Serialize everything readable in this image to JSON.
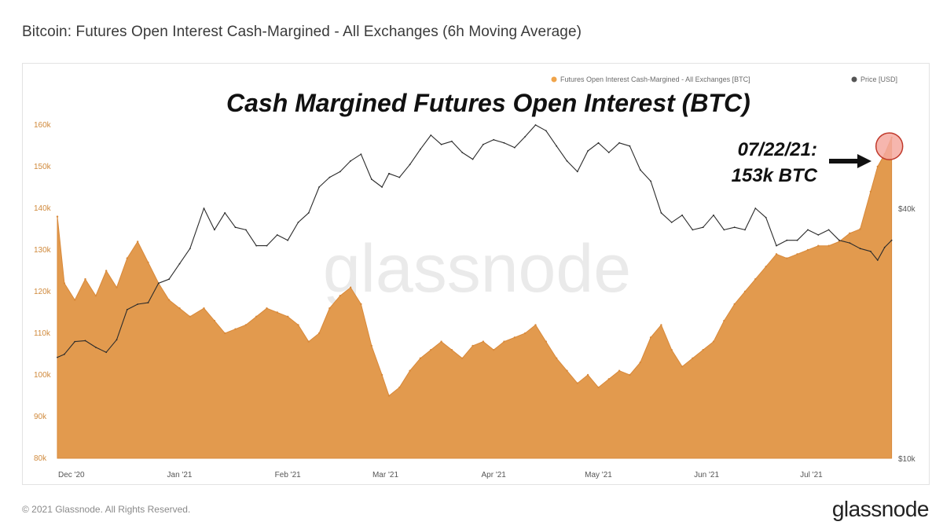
{
  "header": {
    "title": "Bitcoin: Futures Open Interest Cash-Margined - All Exchanges (6h Moving Average)"
  },
  "footer": {
    "copyright": "© 2021 Glassnode. All Rights Reserved.",
    "logo_text": "glassnode"
  },
  "watermark": "glassnode",
  "colors": {
    "oi_fill": "#e29a4e",
    "oi_tick": "#d08a3c",
    "price_line": "#2b2b2b",
    "marker": "#f4a9a0",
    "marker_stroke": "#c0392b"
  },
  "chart_data": {
    "type": "area",
    "title": "Cash Margined Futures Open Interest (BTC)",
    "legend": {
      "placement": "top-right",
      "items": [
        {
          "name": "Futures Open Interest Cash-Margined - All Exchanges [BTC]",
          "color": "#f0a44a"
        },
        {
          "name": "Price [USD]",
          "color": "#555555"
        }
      ]
    },
    "annotation": {
      "line1": "07/22/21:",
      "line2": "153k BTC",
      "date": "2021-07-22",
      "value": 153000
    },
    "x_range": [
      "2020-11-27",
      "2021-07-25"
    ],
    "x_ticks": [
      {
        "label": "Dec '20",
        "date": "2020-12-01"
      },
      {
        "label": "Jan '21",
        "date": "2021-01-01"
      },
      {
        "label": "Feb '21",
        "date": "2021-02-01"
      },
      {
        "label": "Mar '21",
        "date": "2021-03-01"
      },
      {
        "label": "Apr '21",
        "date": "2021-04-01"
      },
      {
        "label": "May '21",
        "date": "2021-05-01"
      },
      {
        "label": "Jun '21",
        "date": "2021-06-01"
      },
      {
        "label": "Jul '21",
        "date": "2021-07-01"
      }
    ],
    "y_left": {
      "range": [
        80000,
        160000
      ],
      "ticks": [
        {
          "label": "80k",
          "value": 80000
        },
        {
          "label": "90k",
          "value": 90000
        },
        {
          "label": "100k",
          "value": 100000
        },
        {
          "label": "110k",
          "value": 110000
        },
        {
          "label": "120k",
          "value": 120000
        },
        {
          "label": "130k",
          "value": 130000
        },
        {
          "label": "140k",
          "value": 140000
        },
        {
          "label": "150k",
          "value": 150000
        },
        {
          "label": "160k",
          "value": 160000
        }
      ]
    },
    "y_right": {
      "scale": "log",
      "ticks": [
        {
          "label": "$10k",
          "value": 10000
        },
        {
          "label": "$40k",
          "value": 40000
        }
      ]
    },
    "series": [
      {
        "name": "Futures Open Interest Cash-Margined - All Exchanges [BTC]",
        "points": [
          [
            "2020-11-27",
            138000
          ],
          [
            "2020-11-29",
            122000
          ],
          [
            "2020-12-02",
            118000
          ],
          [
            "2020-12-05",
            123000
          ],
          [
            "2020-12-08",
            119000
          ],
          [
            "2020-12-11",
            125000
          ],
          [
            "2020-12-14",
            121000
          ],
          [
            "2020-12-17",
            128000
          ],
          [
            "2020-12-20",
            132000
          ],
          [
            "2020-12-23",
            127000
          ],
          [
            "2020-12-26",
            122000
          ],
          [
            "2020-12-29",
            118000
          ],
          [
            "2021-01-01",
            116000
          ],
          [
            "2021-01-04",
            114000
          ],
          [
            "2021-01-08",
            116000
          ],
          [
            "2021-01-11",
            113000
          ],
          [
            "2021-01-14",
            110000
          ],
          [
            "2021-01-17",
            111000
          ],
          [
            "2021-01-20",
            112000
          ],
          [
            "2021-01-23",
            114000
          ],
          [
            "2021-01-26",
            116000
          ],
          [
            "2021-01-29",
            115000
          ],
          [
            "2021-02-01",
            114000
          ],
          [
            "2021-02-04",
            112000
          ],
          [
            "2021-02-07",
            108000
          ],
          [
            "2021-02-10",
            110000
          ],
          [
            "2021-02-13",
            116000
          ],
          [
            "2021-02-16",
            119000
          ],
          [
            "2021-02-19",
            121000
          ],
          [
            "2021-02-22",
            117000
          ],
          [
            "2021-02-25",
            107000
          ],
          [
            "2021-02-28",
            100000
          ],
          [
            "2021-03-02",
            95000
          ],
          [
            "2021-03-05",
            97000
          ],
          [
            "2021-03-08",
            101000
          ],
          [
            "2021-03-11",
            104000
          ],
          [
            "2021-03-14",
            106000
          ],
          [
            "2021-03-17",
            108000
          ],
          [
            "2021-03-20",
            106000
          ],
          [
            "2021-03-23",
            104000
          ],
          [
            "2021-03-26",
            107000
          ],
          [
            "2021-03-29",
            108000
          ],
          [
            "2021-04-01",
            106000
          ],
          [
            "2021-04-04",
            108000
          ],
          [
            "2021-04-07",
            109000
          ],
          [
            "2021-04-10",
            110000
          ],
          [
            "2021-04-13",
            112000
          ],
          [
            "2021-04-16",
            108000
          ],
          [
            "2021-04-19",
            104000
          ],
          [
            "2021-04-22",
            101000
          ],
          [
            "2021-04-25",
            98000
          ],
          [
            "2021-04-28",
            100000
          ],
          [
            "2021-05-01",
            97000
          ],
          [
            "2021-05-04",
            99000
          ],
          [
            "2021-05-07",
            101000
          ],
          [
            "2021-05-10",
            100000
          ],
          [
            "2021-05-13",
            103000
          ],
          [
            "2021-05-16",
            109000
          ],
          [
            "2021-05-19",
            112000
          ],
          [
            "2021-05-22",
            106000
          ],
          [
            "2021-05-25",
            102000
          ],
          [
            "2021-05-28",
            104000
          ],
          [
            "2021-05-31",
            106000
          ],
          [
            "2021-06-03",
            108000
          ],
          [
            "2021-06-06",
            113000
          ],
          [
            "2021-06-09",
            117000
          ],
          [
            "2021-06-12",
            120000
          ],
          [
            "2021-06-15",
            123000
          ],
          [
            "2021-06-18",
            126000
          ],
          [
            "2021-06-21",
            129000
          ],
          [
            "2021-06-24",
            128000
          ],
          [
            "2021-06-27",
            129000
          ],
          [
            "2021-06-30",
            130000
          ],
          [
            "2021-07-03",
            131000
          ],
          [
            "2021-07-06",
            131000
          ],
          [
            "2021-07-09",
            132000
          ],
          [
            "2021-07-12",
            134000
          ],
          [
            "2021-07-15",
            135000
          ],
          [
            "2021-07-18",
            144000
          ],
          [
            "2021-07-20",
            150000
          ],
          [
            "2021-07-22",
            153000
          ],
          [
            "2021-07-24",
            157000
          ]
        ]
      },
      {
        "name": "Price [USD]",
        "points": [
          [
            "2020-11-27",
            17500
          ],
          [
            "2020-11-29",
            17800
          ],
          [
            "2020-12-02",
            19100
          ],
          [
            "2020-12-05",
            19200
          ],
          [
            "2020-12-08",
            18500
          ],
          [
            "2020-12-11",
            18000
          ],
          [
            "2020-12-14",
            19300
          ],
          [
            "2020-12-17",
            22800
          ],
          [
            "2020-12-20",
            23500
          ],
          [
            "2020-12-23",
            23700
          ],
          [
            "2020-12-26",
            26400
          ],
          [
            "2020-12-29",
            27000
          ],
          [
            "2021-01-01",
            29400
          ],
          [
            "2021-01-04",
            32000
          ],
          [
            "2021-01-08",
            40000
          ],
          [
            "2021-01-11",
            35500
          ],
          [
            "2021-01-14",
            39000
          ],
          [
            "2021-01-17",
            36000
          ],
          [
            "2021-01-20",
            35500
          ],
          [
            "2021-01-23",
            32500
          ],
          [
            "2021-01-26",
            32500
          ],
          [
            "2021-01-29",
            34500
          ],
          [
            "2021-02-01",
            33500
          ],
          [
            "2021-02-04",
            37000
          ],
          [
            "2021-02-07",
            39000
          ],
          [
            "2021-02-10",
            45000
          ],
          [
            "2021-02-13",
            47500
          ],
          [
            "2021-02-16",
            49000
          ],
          [
            "2021-02-19",
            52000
          ],
          [
            "2021-02-22",
            54000
          ],
          [
            "2021-02-25",
            47000
          ],
          [
            "2021-02-28",
            45000
          ],
          [
            "2021-03-02",
            48500
          ],
          [
            "2021-03-05",
            47500
          ],
          [
            "2021-03-08",
            51000
          ],
          [
            "2021-03-11",
            55500
          ],
          [
            "2021-03-14",
            60000
          ],
          [
            "2021-03-17",
            57000
          ],
          [
            "2021-03-20",
            58000
          ],
          [
            "2021-03-23",
            54500
          ],
          [
            "2021-03-26",
            52500
          ],
          [
            "2021-03-29",
            57000
          ],
          [
            "2021-04-01",
            58500
          ],
          [
            "2021-04-04",
            57500
          ],
          [
            "2021-04-07",
            56000
          ],
          [
            "2021-04-10",
            59500
          ],
          [
            "2021-04-13",
            63500
          ],
          [
            "2021-04-16",
            61500
          ],
          [
            "2021-04-19",
            56500
          ],
          [
            "2021-04-22",
            52000
          ],
          [
            "2021-04-25",
            49000
          ],
          [
            "2021-04-28",
            55000
          ],
          [
            "2021-05-01",
            57500
          ],
          [
            "2021-05-04",
            54500
          ],
          [
            "2021-05-07",
            57500
          ],
          [
            "2021-05-10",
            56500
          ],
          [
            "2021-05-13",
            49500
          ],
          [
            "2021-05-16",
            46500
          ],
          [
            "2021-05-19",
            39000
          ],
          [
            "2021-05-22",
            37000
          ],
          [
            "2021-05-25",
            38500
          ],
          [
            "2021-05-28",
            35500
          ],
          [
            "2021-05-31",
            36000
          ],
          [
            "2021-06-03",
            38500
          ],
          [
            "2021-06-06",
            35500
          ],
          [
            "2021-06-09",
            36000
          ],
          [
            "2021-06-12",
            35500
          ],
          [
            "2021-06-15",
            40000
          ],
          [
            "2021-06-18",
            38000
          ],
          [
            "2021-06-21",
            32500
          ],
          [
            "2021-06-24",
            33500
          ],
          [
            "2021-06-27",
            33500
          ],
          [
            "2021-06-30",
            35500
          ],
          [
            "2021-07-03",
            34500
          ],
          [
            "2021-07-06",
            35500
          ],
          [
            "2021-07-09",
            33500
          ],
          [
            "2021-07-12",
            33000
          ],
          [
            "2021-07-15",
            32000
          ],
          [
            "2021-07-18",
            31500
          ],
          [
            "2021-07-20",
            30000
          ],
          [
            "2021-07-22",
            32200
          ],
          [
            "2021-07-24",
            33500
          ]
        ]
      }
    ]
  }
}
